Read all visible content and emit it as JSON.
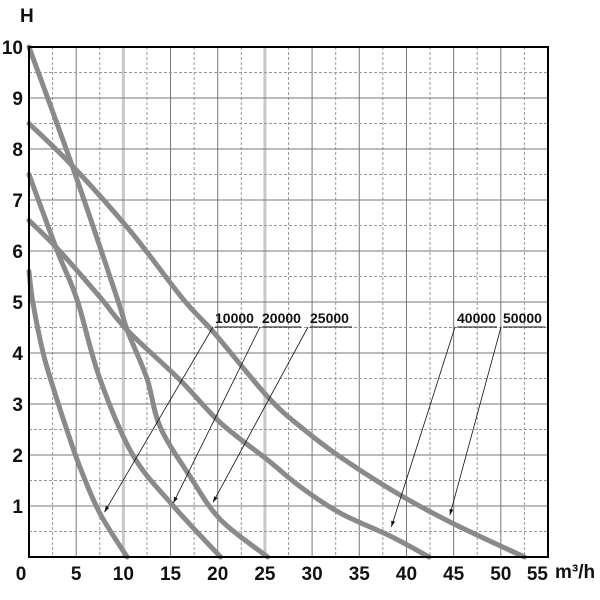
{
  "chart_data": {
    "type": "line",
    "title": "",
    "xlabel": "m³/h",
    "ylabel": "H",
    "xlim": [
      0,
      55
    ],
    "ylim": [
      0,
      10
    ],
    "xticks": [
      0,
      5,
      10,
      15,
      20,
      25,
      30,
      35,
      40,
      45,
      50,
      55
    ],
    "yticks": [
      1,
      2,
      3,
      4,
      5,
      6,
      7,
      8,
      9,
      10
    ],
    "grid": true,
    "curve_color": "#8a8a8a",
    "series": [
      {
        "name": "10000",
        "points": [
          [
            0,
            5.6
          ],
          [
            0.4,
            5
          ],
          [
            1.5,
            4
          ],
          [
            2.6,
            3.3
          ],
          [
            4,
            2.5
          ],
          [
            5.4,
            1.76
          ],
          [
            7.5,
            0.86
          ],
          [
            10.4,
            0
          ]
        ],
        "arrow_to": [
          8,
          0.88
        ]
      },
      {
        "name": "20000",
        "points": [
          [
            0,
            7.5
          ],
          [
            3,
            6
          ],
          [
            5.1,
            5.04
          ],
          [
            7.5,
            3.5
          ],
          [
            11,
            2
          ],
          [
            15.3,
            1
          ],
          [
            20.3,
            0
          ]
        ],
        "arrow_to": [
          15.3,
          1.06
        ]
      },
      {
        "name": "25000",
        "points": [
          [
            0,
            10
          ],
          [
            4.9,
            7.5
          ],
          [
            9.4,
            5.04
          ],
          [
            10.4,
            4.45
          ],
          [
            12.5,
            3.5
          ],
          [
            13.9,
            2.55
          ],
          [
            17.1,
            1.57
          ],
          [
            20.3,
            0.73
          ],
          [
            25.3,
            0
          ]
        ],
        "arrow_to": [
          19.5,
          1.07
        ]
      },
      {
        "name": "40000",
        "points": [
          [
            0,
            6.6
          ],
          [
            3,
            6.05
          ],
          [
            7.5,
            5.1
          ],
          [
            10.4,
            4.45
          ],
          [
            16,
            3.47
          ],
          [
            20.3,
            2.63
          ],
          [
            25.3,
            1.9
          ],
          [
            28.8,
            1.37
          ],
          [
            33,
            0.86
          ],
          [
            38.4,
            0.4
          ],
          [
            42.4,
            0
          ]
        ],
        "arrow_to": [
          38.4,
          0.59
        ]
      },
      {
        "name": "50000",
        "points": [
          [
            0,
            8.5
          ],
          [
            4.7,
            7.65
          ],
          [
            10.7,
            6.4
          ],
          [
            16.4,
            5.04
          ],
          [
            19.6,
            4.4
          ],
          [
            25.3,
            3.14
          ],
          [
            28.8,
            2.55
          ],
          [
            33,
            1.96
          ],
          [
            39,
            1.25
          ],
          [
            44.8,
            0.67
          ],
          [
            52.5,
            0
          ]
        ],
        "arrow_to": [
          44.6,
          0.82
        ]
      }
    ]
  }
}
